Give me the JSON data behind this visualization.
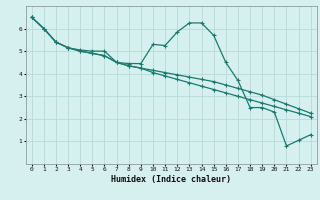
{
  "xlabel": "Humidex (Indice chaleur)",
  "bg_color": "#d6f0f0",
  "line_color": "#1a7a6e",
  "grid_color": "#b8dada",
  "xlim": [
    -0.5,
    23.5
  ],
  "ylim": [
    0,
    7
  ],
  "xticks": [
    0,
    1,
    2,
    3,
    4,
    5,
    6,
    7,
    8,
    9,
    10,
    11,
    12,
    13,
    14,
    15,
    16,
    17,
    18,
    19,
    20,
    21,
    22,
    23
  ],
  "yticks": [
    1,
    2,
    3,
    4,
    5,
    6
  ],
  "series1_x": [
    0,
    1,
    2,
    3,
    4,
    5,
    6,
    7,
    8,
    9,
    10,
    11,
    12,
    13,
    14,
    15,
    16,
    17,
    18,
    19,
    20,
    21,
    22,
    23
  ],
  "series1_y": [
    6.5,
    6.0,
    5.4,
    5.15,
    5.05,
    5.0,
    5.0,
    4.5,
    4.45,
    4.45,
    5.3,
    5.25,
    5.85,
    6.25,
    6.25,
    5.7,
    4.5,
    3.7,
    2.5,
    2.5,
    2.3,
    0.8,
    1.05,
    1.3
  ],
  "series2_x": [
    0,
    1,
    2,
    3,
    4,
    5,
    6,
    7,
    8,
    9,
    10,
    11,
    12,
    13,
    14,
    15,
    16,
    17,
    18,
    19,
    20,
    21,
    22,
    23
  ],
  "series2_y": [
    6.5,
    6.0,
    5.4,
    5.15,
    5.0,
    4.9,
    4.8,
    4.5,
    4.35,
    4.25,
    4.15,
    4.05,
    3.95,
    3.85,
    3.75,
    3.65,
    3.5,
    3.35,
    3.2,
    3.05,
    2.85,
    2.65,
    2.45,
    2.25
  ],
  "series3_x": [
    0,
    1,
    2,
    3,
    4,
    5,
    6,
    7,
    8,
    9,
    10,
    11,
    12,
    13,
    14,
    15,
    16,
    17,
    18,
    19,
    20,
    21,
    22,
    23
  ],
  "series3_y": [
    6.5,
    6.0,
    5.4,
    5.15,
    5.0,
    4.9,
    4.8,
    4.5,
    4.35,
    4.25,
    4.05,
    3.9,
    3.75,
    3.6,
    3.45,
    3.3,
    3.15,
    3.0,
    2.85,
    2.7,
    2.55,
    2.4,
    2.25,
    2.1
  ]
}
